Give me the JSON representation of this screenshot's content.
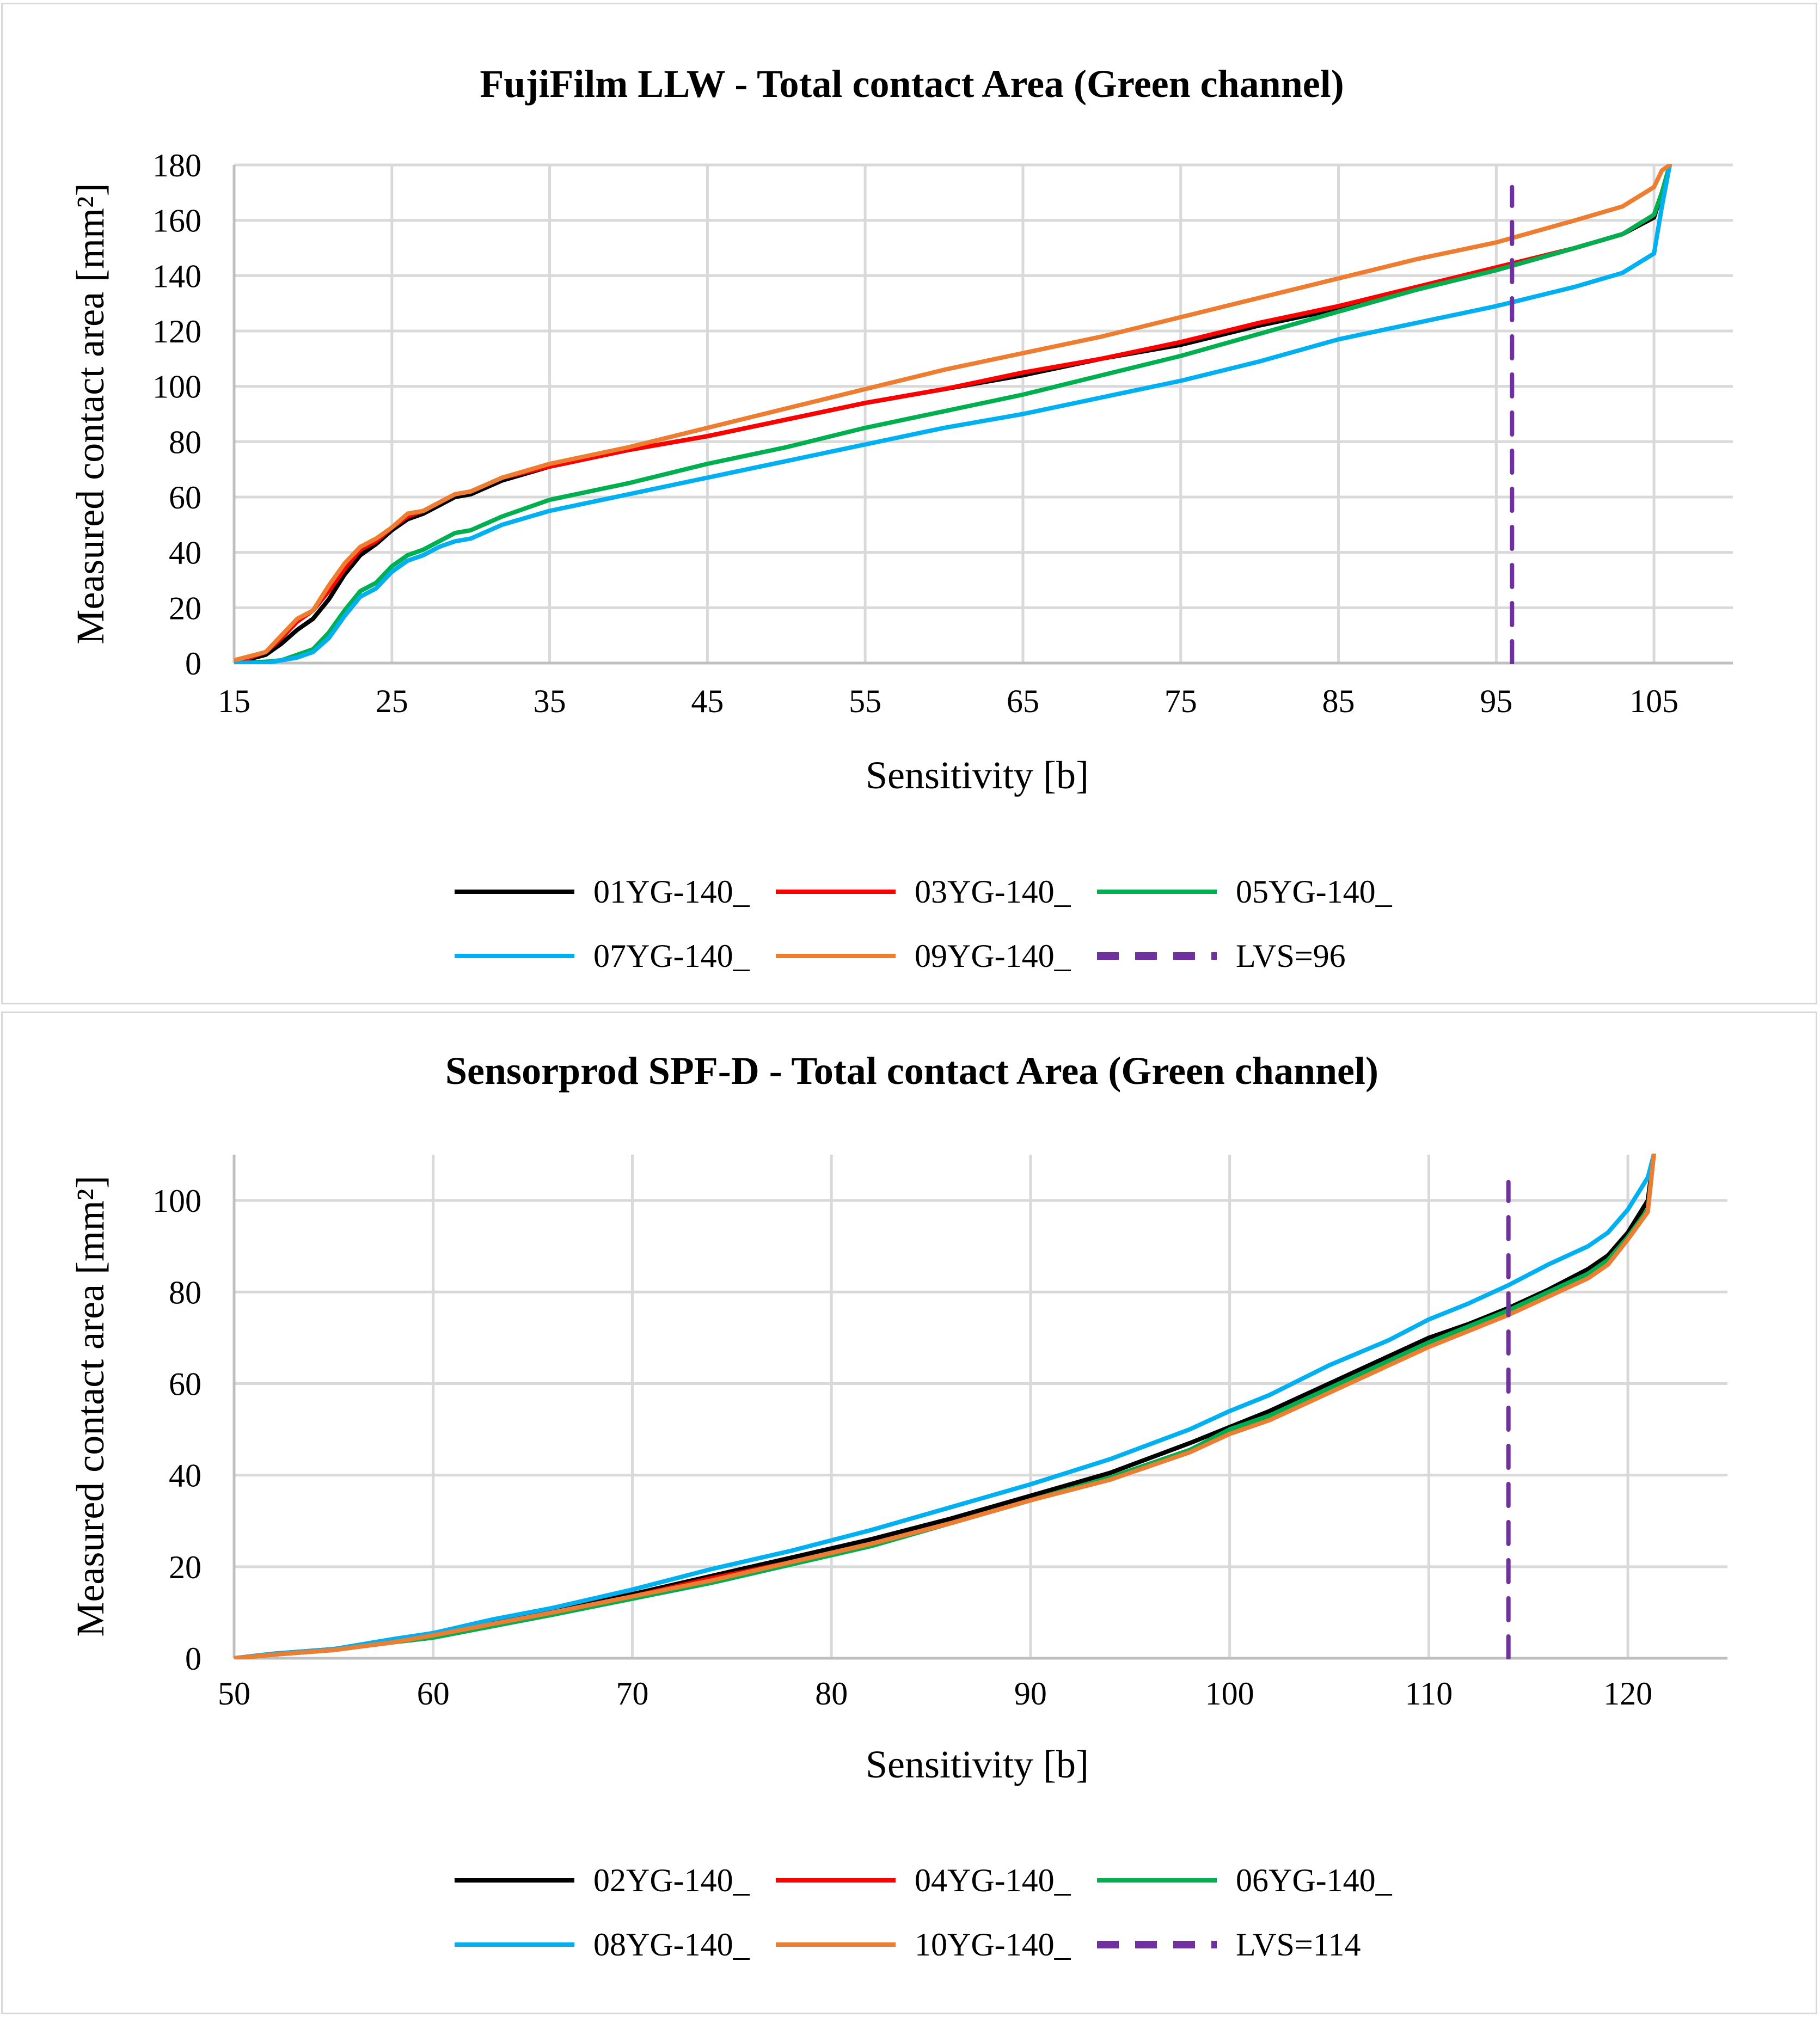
{
  "chart_data": [
    {
      "type": "line",
      "title": "FujiFilm LLW - Total contact Area (Green channel)",
      "xlabel": "Sensitivity [b]",
      "ylabel": "Measured contact area [mm²]",
      "xlim": [
        15,
        110
      ],
      "ylim": [
        0,
        180
      ],
      "xticks": [
        15,
        25,
        35,
        45,
        55,
        65,
        75,
        85,
        95,
        105
      ],
      "yticks": [
        0,
        20,
        40,
        60,
        80,
        100,
        120,
        140,
        160,
        180
      ],
      "grid": true,
      "legend_position": "bottom",
      "series": [
        {
          "name": "01YG-140_",
          "color": "#000000",
          "dashed": false,
          "x": [
            15,
            17,
            18,
            19,
            20,
            21,
            22,
            23,
            24,
            25,
            26,
            27,
            28,
            29,
            30,
            32,
            35,
            40,
            45,
            50,
            55,
            60,
            65,
            70,
            75,
            80,
            85,
            90,
            95,
            100,
            103,
            105,
            105.5,
            106
          ],
          "y": [
            0,
            3,
            7,
            12,
            16,
            23,
            32,
            39,
            43,
            48,
            52,
            54,
            57,
            60,
            61,
            66,
            71,
            77,
            82,
            88,
            94,
            99,
            104,
            110,
            115,
            122,
            128,
            135,
            142,
            150,
            155,
            161,
            170,
            180
          ]
        },
        {
          "name": "03YG-140_",
          "color": "#ff0000",
          "dashed": false,
          "x": [
            15,
            17,
            18,
            19,
            20,
            21,
            22,
            23,
            24,
            25,
            26,
            27,
            28,
            29,
            30,
            32,
            35,
            40,
            45,
            50,
            55,
            60,
            65,
            70,
            75,
            80,
            85,
            90,
            95,
            100,
            103,
            105,
            105.5,
            106
          ],
          "y": [
            0,
            4,
            9,
            15,
            19,
            26,
            34,
            41,
            44,
            49,
            53,
            55,
            58,
            61,
            62,
            67,
            71,
            77,
            82,
            88,
            94,
            99,
            105,
            110,
            116,
            123,
            129,
            136,
            143,
            150,
            155,
            162,
            170,
            180
          ]
        },
        {
          "name": "05YG-140_",
          "color": "#00b050",
          "dashed": false,
          "x": [
            15,
            17,
            18,
            19,
            20,
            21,
            22,
            23,
            24,
            25,
            26,
            27,
            28,
            29,
            30,
            32,
            35,
            40,
            45,
            50,
            55,
            60,
            65,
            70,
            75,
            80,
            85,
            90,
            95,
            100,
            103,
            105,
            105.5,
            106
          ],
          "y": [
            0,
            0.5,
            1,
            3,
            5,
            11,
            19,
            26,
            29,
            35,
            39,
            41,
            44,
            47,
            48,
            53,
            59,
            65,
            72,
            78,
            85,
            91,
            97,
            104,
            111,
            119,
            127,
            135,
            142,
            150,
            155,
            162,
            170,
            180
          ]
        },
        {
          "name": "07YG-140_",
          "color": "#00b0f0",
          "dashed": false,
          "x": [
            15,
            17,
            18,
            19,
            20,
            21,
            22,
            23,
            24,
            25,
            26,
            27,
            28,
            29,
            30,
            32,
            35,
            40,
            45,
            50,
            55,
            60,
            65,
            70,
            75,
            80,
            85,
            90,
            95,
            100,
            103,
            105,
            105.5,
            106
          ],
          "y": [
            0,
            0,
            1,
            2,
            4,
            9,
            17,
            24,
            27,
            33,
            37,
            39,
            42,
            44,
            45,
            50,
            55,
            61,
            67,
            73,
            79,
            85,
            90,
            96,
            102,
            109,
            117,
            123,
            129,
            136,
            141,
            148,
            165,
            180
          ]
        },
        {
          "name": "09YG-140_",
          "color": "#ed7d31",
          "dashed": false,
          "x": [
            15,
            17,
            18,
            19,
            20,
            21,
            22,
            23,
            24,
            25,
            26,
            27,
            28,
            29,
            30,
            32,
            35,
            40,
            45,
            50,
            55,
            60,
            65,
            70,
            75,
            80,
            85,
            90,
            95,
            100,
            103,
            105,
            105.5,
            106
          ],
          "y": [
            1,
            4,
            10,
            16,
            19,
            28,
            36,
            42,
            45,
            49,
            54,
            55,
            58,
            61,
            62,
            67,
            72,
            78,
            85,
            92,
            99,
            106,
            112,
            118,
            125,
            132,
            139,
            146,
            152,
            160,
            165,
            172,
            178,
            180
          ]
        },
        {
          "name": "LVS=96",
          "color": "#7030a0",
          "dashed": true,
          "x": [
            96,
            96
          ],
          "y": [
            0,
            172
          ]
        }
      ]
    },
    {
      "type": "line",
      "title": "Sensorprod SPF-D - Total contact Area (Green channel)",
      "xlabel": "Sensitivity [b]",
      "ylabel": "Measured contact area [mm²]",
      "xlim": [
        50,
        125
      ],
      "ylim": [
        0,
        110
      ],
      "xticks": [
        50,
        60,
        70,
        80,
        90,
        100,
        110,
        120
      ],
      "yticks": [
        0,
        20,
        40,
        60,
        80,
        100
      ],
      "grid": true,
      "legend_position": "bottom",
      "series": [
        {
          "name": "02YG-140_",
          "color": "#000000",
          "dashed": false,
          "x": [
            50,
            52,
            55,
            58,
            60,
            63,
            66,
            70,
            74,
            78,
            82,
            86,
            90,
            94,
            98,
            100,
            102,
            105,
            108,
            110,
            112,
            114,
            116,
            118,
            119,
            120,
            121,
            121.3
          ],
          "y": [
            0,
            1,
            2,
            4,
            5.5,
            8,
            10.5,
            14,
            18,
            22,
            26,
            30.5,
            35.5,
            40.5,
            47,
            50.5,
            54,
            60,
            66,
            70,
            73,
            76.5,
            80.5,
            85,
            88,
            93,
            100,
            110
          ]
        },
        {
          "name": "04YG-140_",
          "color": "#ff0000",
          "dashed": false,
          "x": [
            50,
            52,
            55,
            58,
            60,
            63,
            66,
            70,
            74,
            78,
            82,
            86,
            90,
            94,
            98,
            100,
            102,
            105,
            108,
            110,
            112,
            114,
            116,
            118,
            119,
            120,
            121,
            121.3
          ],
          "y": [
            0,
            0.8,
            1.8,
            3.5,
            5,
            7.5,
            10,
            13.5,
            17.5,
            21,
            25,
            29.5,
            34.5,
            39.5,
            45.5,
            49.5,
            52.5,
            58.5,
            64.5,
            68.5,
            72,
            75.5,
            79.5,
            84,
            87,
            92,
            98,
            110
          ]
        },
        {
          "name": "06YG-140_",
          "color": "#00b050",
          "dashed": false,
          "x": [
            50,
            52,
            55,
            58,
            60,
            63,
            66,
            70,
            74,
            78,
            82,
            86,
            90,
            94,
            98,
            100,
            102,
            105,
            108,
            110,
            112,
            114,
            116,
            118,
            119,
            120,
            121,
            121.3
          ],
          "y": [
            0,
            0.8,
            1.8,
            3.5,
            4.5,
            7,
            9.5,
            13,
            16.5,
            20.5,
            24.5,
            29.5,
            34.5,
            39.5,
            45.5,
            50,
            53,
            59,
            65,
            69,
            72.5,
            76,
            80,
            84,
            87,
            92,
            98,
            110
          ]
        },
        {
          "name": "08YG-140_",
          "color": "#00b0f0",
          "dashed": false,
          "x": [
            50,
            52,
            55,
            58,
            60,
            63,
            66,
            70,
            74,
            78,
            82,
            86,
            90,
            94,
            98,
            100,
            102,
            105,
            108,
            110,
            112,
            114,
            116,
            118,
            119,
            120,
            121,
            121.3
          ],
          "y": [
            0,
            1,
            2,
            4.2,
            5.5,
            8.5,
            11,
            15,
            19.5,
            23.5,
            28,
            33,
            38,
            43.5,
            50,
            54,
            57.5,
            64,
            69.5,
            74,
            77.5,
            81.5,
            86,
            90,
            93,
            98,
            105,
            110
          ]
        },
        {
          "name": "10YG-140_",
          "color": "#ed7d31",
          "dashed": false,
          "x": [
            50,
            52,
            55,
            58,
            60,
            63,
            66,
            70,
            74,
            78,
            82,
            86,
            90,
            94,
            98,
            100,
            102,
            105,
            108,
            110,
            112,
            114,
            116,
            118,
            119,
            120,
            121,
            121.3
          ],
          "y": [
            0,
            0.8,
            1.8,
            3.5,
            5,
            7.5,
            10,
            13.5,
            17,
            21,
            25,
            29.5,
            34.5,
            39,
            45,
            49,
            52,
            58,
            64,
            68,
            71.5,
            75,
            79,
            83,
            86,
            91.5,
            97.5,
            110
          ]
        },
        {
          "name": "LVS=114",
          "color": "#7030a0",
          "dashed": true,
          "x": [
            114,
            114
          ],
          "y": [
            0,
            104
          ]
        }
      ]
    }
  ]
}
